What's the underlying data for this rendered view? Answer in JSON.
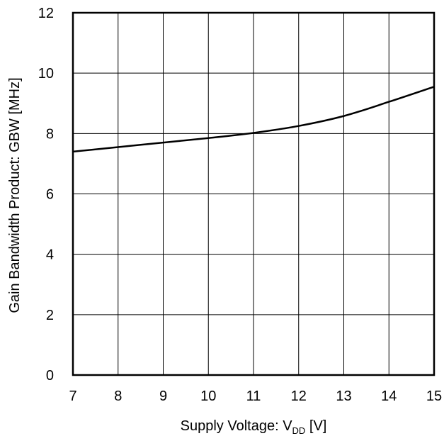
{
  "chart_data": {
    "type": "line",
    "title": "",
    "xlabel_main": "Supply Voltage: V",
    "xlabel_sub": "DD",
    "xlabel_tail": " [V]",
    "ylabel": "Gain Bandwidth Product: GBW [MHz]",
    "xlim": [
      7,
      15
    ],
    "ylim": [
      0,
      12
    ],
    "xticks": [
      "7",
      "8",
      "9",
      "10",
      "11",
      "12",
      "13",
      "14",
      "15"
    ],
    "yticks": [
      "0",
      "2",
      "4",
      "6",
      "8",
      "10",
      "12"
    ],
    "grid": true,
    "legend": "none",
    "line_color": "#000000",
    "series": [
      {
        "x": [
          7,
          8,
          9,
          10,
          11,
          12,
          13,
          14,
          15
        ],
        "y": [
          7.4,
          7.55,
          7.7,
          7.85,
          8.02,
          8.25,
          8.58,
          9.05,
          9.55
        ]
      }
    ]
  }
}
